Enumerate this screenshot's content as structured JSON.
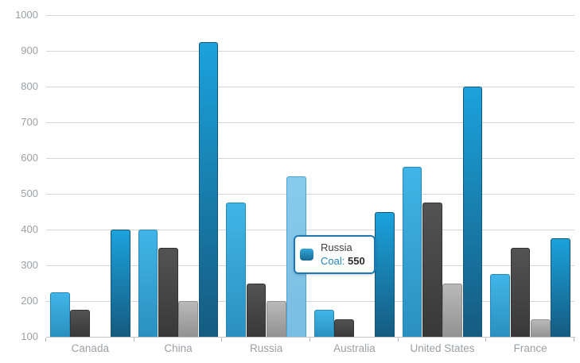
{
  "chart_data": {
    "type": "bar",
    "title": "",
    "xlabel": "",
    "ylabel": "",
    "categories": [
      "Canada",
      "China",
      "Russia",
      "Australia",
      "United States",
      "France"
    ],
    "series": [
      {
        "name": "",
        "color": "#36aee3",
        "values": [
          225,
          400,
          475,
          175,
          575,
          275
        ]
      },
      {
        "name": "",
        "color": "#474747",
        "values": [
          175,
          350,
          250,
          150,
          475,
          350
        ]
      },
      {
        "name": "",
        "color": "#a8a8a8",
        "values": [
          null,
          200,
          200,
          null,
          250,
          150
        ]
      },
      {
        "name": "Coal",
        "color": "#1b7fae",
        "values": [
          400,
          925,
          550,
          450,
          800,
          375
        ]
      }
    ],
    "ylim": [
      100,
      1000
    ],
    "y_ticks": [
      100,
      200,
      300,
      400,
      500,
      600,
      700,
      800,
      900,
      1000
    ],
    "grid": "horizontal",
    "legend": "none",
    "highlighted": {
      "category": "Russia",
      "series": "Coal",
      "value": 550,
      "highlight_color": "#80c6e9"
    }
  },
  "tooltip": {
    "category": "Russia",
    "series_label": "Coal:",
    "value": "550"
  },
  "colors": {
    "background": "#ffffff",
    "gridline": "#d6d6d6",
    "axis_label": "#9aa0a6",
    "tooltip_border": "#1d79b3",
    "tooltip_series_text": "#2586c0"
  }
}
